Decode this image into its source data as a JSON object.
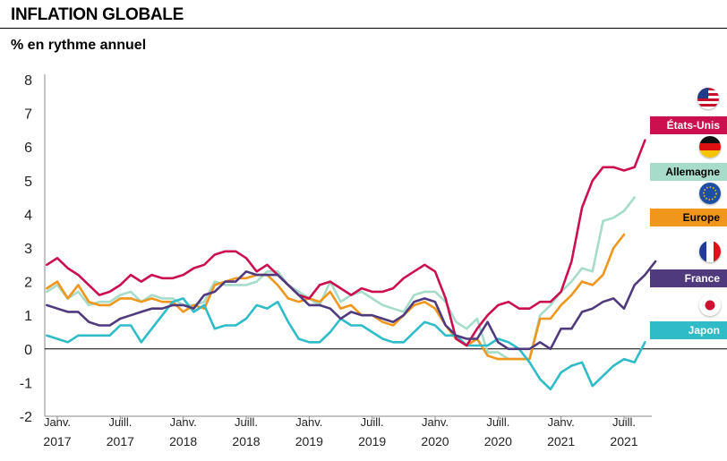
{
  "header": {
    "title": "INFLATION GLOBALE",
    "subtitle": "% en rythme annuel"
  },
  "chart_data": {
    "type": "line",
    "title": "INFLATION GLOBALE",
    "ylabel": "% en rythme annuel",
    "ylim": [
      -2,
      8
    ],
    "yticks": [
      8,
      7,
      6,
      5,
      4,
      3,
      2,
      1,
      0,
      -1,
      -2
    ],
    "xlim": [
      2017.0,
      2021.83
    ],
    "xticks": [
      {
        "x": 2017.0,
        "top": "Janv.",
        "bottom": "2017"
      },
      {
        "x": 2017.5,
        "top": "Juill.",
        "bottom": "2017"
      },
      {
        "x": 2018.0,
        "top": "Janv.",
        "bottom": "2018"
      },
      {
        "x": 2018.5,
        "top": "Juill.",
        "bottom": "2018"
      },
      {
        "x": 2019.0,
        "top": "Janv.",
        "bottom": "2019"
      },
      {
        "x": 2019.5,
        "top": "Juill.",
        "bottom": "2019"
      },
      {
        "x": 2020.0,
        "top": "Janv.",
        "bottom": "2020"
      },
      {
        "x": 2020.5,
        "top": "Juill.",
        "bottom": "2020"
      },
      {
        "x": 2021.0,
        "top": "Janv.",
        "bottom": "2021"
      },
      {
        "x": 2021.5,
        "top": "Juill.",
        "bottom": "2021"
      }
    ],
    "x_start": 2016.9167,
    "x_step": 0.08333,
    "series": [
      {
        "name": "Allemagne",
        "color": "#a6dcc9",
        "flag": "germany-flag-icon",
        "values": [
          1.7,
          1.9,
          1.5,
          1.7,
          1.3,
          1.4,
          1.4,
          1.6,
          1.7,
          1.4,
          1.6,
          1.5,
          1.5,
          1.3,
          1.3,
          1.4,
          2.0,
          1.9,
          1.9,
          1.9,
          2.0,
          2.3,
          2.3,
          1.9,
          1.7,
          1.5,
          1.3,
          2.0,
          1.4,
          1.6,
          1.7,
          1.5,
          1.3,
          1.2,
          1.1,
          1.6,
          1.7,
          1.7,
          1.4,
          0.8,
          0.6,
          0.9,
          -0.1,
          -0.1,
          -0.3,
          -0.3,
          -0.3,
          1.0,
          1.3,
          1.7,
          2.0,
          2.4,
          2.3,
          3.8,
          3.9,
          4.1,
          4.5
        ]
      },
      {
        "name": "Europe",
        "color": "#f0961c",
        "flag": "eu-flag-icon",
        "values": [
          1.8,
          2.0,
          1.5,
          1.9,
          1.4,
          1.3,
          1.3,
          1.5,
          1.5,
          1.4,
          1.5,
          1.4,
          1.4,
          1.1,
          1.3,
          1.2,
          1.9,
          2.0,
          2.1,
          2.1,
          2.2,
          2.2,
          1.9,
          1.5,
          1.4,
          1.5,
          1.4,
          1.7,
          1.2,
          1.3,
          1.0,
          1.0,
          0.8,
          0.7,
          1.0,
          1.3,
          1.4,
          1.2,
          0.7,
          0.3,
          0.1,
          0.3,
          -0.2,
          -0.3,
          -0.3,
          -0.3,
          -0.3,
          0.9,
          0.9,
          1.3,
          1.6,
          2.0,
          1.9,
          2.2,
          3.0,
          3.4
        ]
      },
      {
        "name": "Japon",
        "color": "#2fbcc8",
        "flag": "japan-flag-icon",
        "values": [
          0.4,
          0.3,
          0.2,
          0.4,
          0.4,
          0.4,
          0.4,
          0.7,
          0.7,
          0.2,
          0.6,
          1.0,
          1.4,
          1.5,
          1.1,
          1.3,
          0.6,
          0.7,
          0.7,
          0.9,
          1.3,
          1.2,
          1.4,
          0.8,
          0.3,
          0.2,
          0.2,
          0.5,
          0.9,
          0.7,
          0.7,
          0.5,
          0.3,
          0.2,
          0.2,
          0.5,
          0.8,
          0.7,
          0.4,
          0.4,
          0.1,
          0.1,
          0.1,
          0.3,
          0.2,
          0.0,
          -0.4,
          -0.9,
          -1.2,
          -0.7,
          -0.5,
          -0.4,
          -1.1,
          -0.8,
          -0.5,
          -0.3,
          -0.4,
          0.2
        ]
      },
      {
        "name": "États-Unis",
        "color": "#cc0f4f",
        "flag": "usa-flag-icon",
        "values": [
          2.5,
          2.7,
          2.4,
          2.2,
          1.9,
          1.6,
          1.7,
          1.9,
          2.2,
          2.0,
          2.2,
          2.1,
          2.1,
          2.2,
          2.4,
          2.5,
          2.8,
          2.9,
          2.9,
          2.7,
          2.3,
          2.5,
          2.2,
          1.9,
          1.6,
          1.5,
          1.9,
          2.0,
          1.8,
          1.6,
          1.8,
          1.7,
          1.7,
          1.8,
          2.1,
          2.3,
          2.5,
          2.3,
          1.5,
          0.3,
          0.1,
          0.6,
          1.0,
          1.3,
          1.4,
          1.2,
          1.2,
          1.4,
          1.4,
          1.7,
          2.6,
          4.2,
          5.0,
          5.4,
          5.4,
          5.3,
          5.4,
          6.2
        ]
      },
      {
        "name": "France",
        "color": "#503a7e",
        "flag": "france-flag-icon",
        "values": [
          1.3,
          1.2,
          1.1,
          1.1,
          0.8,
          0.7,
          0.7,
          0.9,
          1.0,
          1.1,
          1.2,
          1.2,
          1.3,
          1.3,
          1.2,
          1.6,
          1.7,
          2.0,
          2.0,
          2.3,
          2.2,
          2.2,
          2.2,
          1.9,
          1.6,
          1.3,
          1.3,
          1.2,
          0.9,
          1.1,
          1.0,
          1.0,
          0.9,
          0.8,
          1.0,
          1.4,
          1.5,
          1.4,
          0.7,
          0.4,
          0.3,
          0.3,
          0.8,
          0.2,
          0.0,
          0.0,
          0.0,
          0.2,
          0.0,
          0.6,
          0.6,
          1.1,
          1.2,
          1.4,
          1.5,
          1.2,
          1.9,
          2.2,
          2.6
        ]
      }
    ]
  },
  "legend": {
    "usa_label": "États-Unis",
    "germany_label": "Allemagne",
    "europe_label": "Europe",
    "france_label": "France",
    "japan_label": "Japon"
  }
}
